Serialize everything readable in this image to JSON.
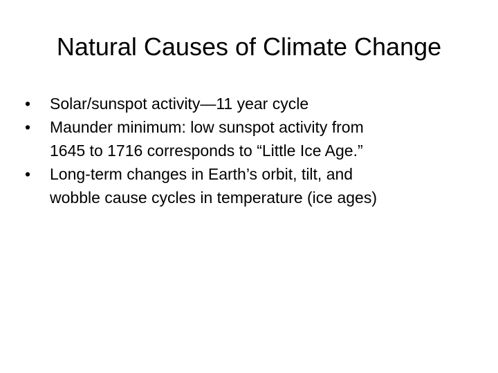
{
  "slide": {
    "title": "Natural Causes of Climate Change",
    "bullets": [
      {
        "lines": [
          "Solar/sunspot activity—11 year cycle"
        ]
      },
      {
        "lines": [
          "Maunder minimum: low sunspot activity from",
          "1645 to 1716 corresponds to “Little Ice Age.”"
        ]
      },
      {
        "lines": [
          "Long-term changes in Earth’s orbit, tilt, and",
          "wobble cause cycles in temperature (ice ages)"
        ]
      }
    ]
  }
}
